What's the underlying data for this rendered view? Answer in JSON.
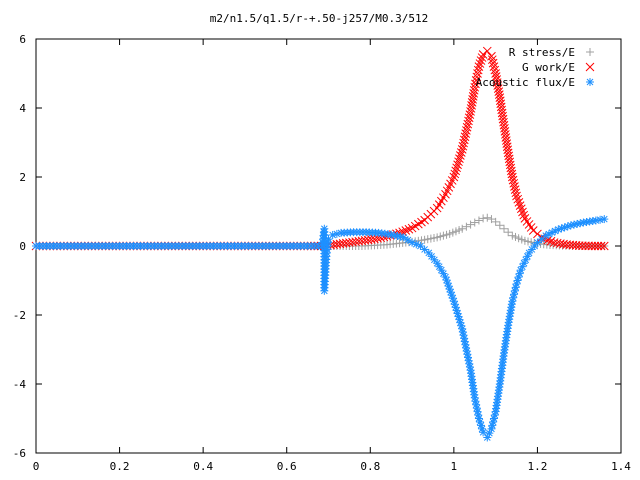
{
  "chart_data": {
    "type": "scatter",
    "title": "m2/n1.5/q1.5/r-+.50-j257/M0.3/512",
    "xlabel": "",
    "ylabel": "",
    "xlim": [
      0,
      1.4
    ],
    "ylim": [
      -6,
      6
    ],
    "xticks": [
      "0",
      "0.2",
      "0.4",
      "0.6",
      "0.8",
      "1",
      "1.2",
      "1.4"
    ],
    "yticks": [
      "6",
      "4",
      "2",
      "0",
      "-2",
      "-4",
      "-6"
    ],
    "grid": false,
    "legend_position": "top-right",
    "series": [
      {
        "name": "R stress/E",
        "marker": "plus",
        "color": "#a0a0a0",
        "x": [
          0.0,
          0.05,
          0.1,
          0.15,
          0.2,
          0.25,
          0.3,
          0.35,
          0.4,
          0.45,
          0.5,
          0.55,
          0.6,
          0.65,
          0.69,
          0.72,
          0.75,
          0.78,
          0.81,
          0.84,
          0.87,
          0.9,
          0.93,
          0.96,
          0.99,
          1.02,
          1.04,
          1.06,
          1.07,
          1.08,
          1.09,
          1.1,
          1.12,
          1.14,
          1.17,
          1.2,
          1.23,
          1.26,
          1.3,
          1.33,
          1.36
        ],
        "y": [
          0,
          0,
          0,
          0,
          0,
          0,
          0,
          0,
          0,
          0,
          0,
          0,
          0,
          0,
          0.0,
          0.0,
          0.0,
          0.0,
          0.02,
          0.04,
          0.08,
          0.12,
          0.18,
          0.25,
          0.35,
          0.5,
          0.62,
          0.74,
          0.8,
          0.82,
          0.78,
          0.7,
          0.5,
          0.3,
          0.15,
          0.07,
          0.03,
          0.01,
          0.0,
          0.0,
          0.0
        ]
      },
      {
        "name": "G work/E",
        "marker": "cross",
        "color": "#ff0000",
        "x": [
          0.0,
          0.05,
          0.1,
          0.15,
          0.2,
          0.25,
          0.3,
          0.35,
          0.4,
          0.45,
          0.5,
          0.55,
          0.6,
          0.65,
          0.69,
          0.72,
          0.75,
          0.78,
          0.81,
          0.84,
          0.87,
          0.9,
          0.93,
          0.96,
          0.98,
          1.0,
          1.02,
          1.04,
          1.05,
          1.06,
          1.07,
          1.08,
          1.09,
          1.1,
          1.11,
          1.12,
          1.13,
          1.14,
          1.15,
          1.17,
          1.19,
          1.21,
          1.24,
          1.27,
          1.3,
          1.33,
          1.36
        ],
        "y": [
          0,
          0,
          0,
          0,
          0,
          0,
          0,
          0,
          0,
          0,
          0,
          0,
          0,
          0,
          0.0,
          0.05,
          0.1,
          0.15,
          0.2,
          0.28,
          0.38,
          0.52,
          0.75,
          1.1,
          1.5,
          2.0,
          2.8,
          3.9,
          4.6,
          5.2,
          5.55,
          5.65,
          5.5,
          5.0,
          4.3,
          3.5,
          2.7,
          2.0,
          1.45,
          0.8,
          0.45,
          0.25,
          0.1,
          0.04,
          0.01,
          0.0,
          0.0
        ]
      },
      {
        "name": "Acoustic flux/E",
        "marker": "star",
        "color": "#1e90ff",
        "x": [
          0.0,
          0.05,
          0.1,
          0.15,
          0.2,
          0.25,
          0.3,
          0.35,
          0.4,
          0.45,
          0.5,
          0.55,
          0.6,
          0.65,
          0.685,
          0.69,
          0.69,
          0.695,
          0.7,
          0.71,
          0.73,
          0.76,
          0.79,
          0.82,
          0.85,
          0.88,
          0.9,
          0.92,
          0.94,
          0.96,
          0.98,
          1.0,
          1.02,
          1.04,
          1.05,
          1.06,
          1.07,
          1.08,
          1.09,
          1.1,
          1.11,
          1.12,
          1.13,
          1.14,
          1.15,
          1.16,
          1.18,
          1.2,
          1.22,
          1.25,
          1.28,
          1.31,
          1.34,
          1.36
        ],
        "y": [
          0,
          0,
          0,
          0,
          0,
          0,
          0,
          0,
          0,
          0,
          0,
          0,
          0,
          0,
          0.0,
          0.5,
          -1.3,
          -0.3,
          0.2,
          0.32,
          0.38,
          0.4,
          0.4,
          0.38,
          0.33,
          0.25,
          0.1,
          0.0,
          -0.2,
          -0.5,
          -0.9,
          -1.6,
          -2.4,
          -3.6,
          -4.4,
          -5.0,
          -5.4,
          -5.55,
          -5.3,
          -4.8,
          -4.0,
          -3.1,
          -2.3,
          -1.6,
          -1.1,
          -0.7,
          -0.2,
          0.1,
          0.3,
          0.48,
          0.6,
          0.68,
          0.74,
          0.78
        ]
      }
    ]
  }
}
